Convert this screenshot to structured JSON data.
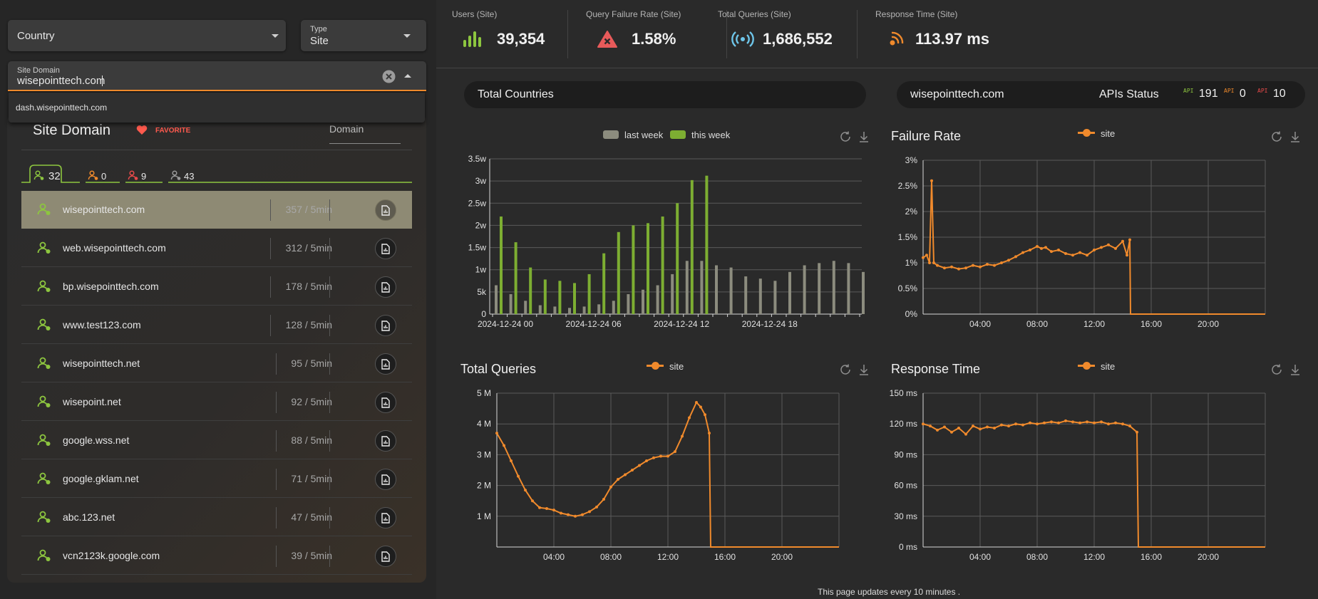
{
  "filters": {
    "country": {
      "label": "Country"
    },
    "type": {
      "caption": "Type",
      "value": "Site"
    },
    "site_domain": {
      "caption": "Site Domain",
      "value": "wisepointtech.com"
    },
    "suggestion": "dash.wisepointtech.com"
  },
  "panel": {
    "title": "Site Domain",
    "favorite_label": "FAVORITE",
    "domain_label": "Domain",
    "status_tabs": [
      {
        "count": "32",
        "color": "#8dc63f"
      },
      {
        "count": "0",
        "color": "#f08a2c"
      },
      {
        "count": "9",
        "color": "#e94a4a"
      },
      {
        "count": "43",
        "color": "#9a9a9a"
      }
    ],
    "rows": [
      {
        "name": "wisepointtech.com",
        "rate": "357 / 5min"
      },
      {
        "name": "web.wisepointtech.com",
        "rate": "312 / 5min"
      },
      {
        "name": "bp.wisepointtech.com",
        "rate": "178 / 5min"
      },
      {
        "name": "www.test123.com",
        "rate": "128 / 5min"
      },
      {
        "name": "wisepointtech.net",
        "rate": "95 / 5min"
      },
      {
        "name": "wisepoint.net",
        "rate": "92 / 5min"
      },
      {
        "name": "google.wss.net",
        "rate": "88 / 5min"
      },
      {
        "name": "google.gklam.net",
        "rate": "71 / 5min"
      },
      {
        "name": "abc.123.net",
        "rate": "47 / 5min"
      },
      {
        "name": "vcn2123k.google.com",
        "rate": "39 / 5min"
      }
    ]
  },
  "kpis": [
    {
      "label": "Users  (Site)",
      "value": "39,354",
      "icon": "bars-icon",
      "color": "#8dc63f"
    },
    {
      "label": "Query Failure Rate  (Site)",
      "value": "1.58%",
      "icon": "alert-triangle-icon",
      "color": "#e85a5a"
    },
    {
      "label": "Total Queries  (Site)",
      "value": "1,686,552",
      "icon": "broadcast-icon",
      "color": "#6ec6ea"
    },
    {
      "label": "Response Time  (Site)",
      "value": "113.97 ms",
      "icon": "signal-icon",
      "color": "#f08a2c"
    }
  ],
  "countries_pill": {
    "title": "Total Countries"
  },
  "domain_pill": {
    "domain": "wisepointtech.com",
    "status_label": "APIs Status",
    "api_label": "API",
    "api_counts": [
      {
        "value": "191",
        "color": "#8dc63f"
      },
      {
        "value": "0",
        "color": "#f08a2c"
      },
      {
        "value": "10",
        "color": "#e94a4a"
      }
    ]
  },
  "footer": "This page updates every 10 minutes .",
  "chart_data": [
    {
      "type": "bar",
      "title": "",
      "series": [
        {
          "name": "last week",
          "color": "#8c8c7e",
          "values": [
            0.65,
            0.45,
            0.3,
            0.2,
            0.17,
            0.14,
            0.17,
            0.22,
            0.3,
            0.45,
            0.55,
            0.65,
            0.9,
            1.2,
            1.2,
            1.1,
            1.05,
            0.85,
            0.8,
            0.75,
            0.95,
            1.1,
            1.15,
            1.2,
            1.15,
            0.95
          ]
        },
        {
          "name": "this week",
          "color": "#7dae32",
          "values": [
            2.2,
            1.62,
            1.05,
            0.78,
            0.75,
            0.7,
            0.9,
            1.37,
            1.85,
            2.0,
            2.05,
            2.2,
            2.5,
            3.02,
            3.12,
            0,
            0,
            0,
            0,
            0,
            0,
            0,
            0,
            0,
            0,
            0
          ]
        }
      ],
      "x_tick_labels": [
        "2024-12-24 00",
        "2024-12-24 06",
        "2024-12-24 12",
        "2024-12-24 18"
      ],
      "y_tick_labels": [
        "0",
        "5k",
        "1w",
        "1.5w",
        "2w",
        "2.5w",
        "3w",
        "3.5w"
      ],
      "ylim": [
        0,
        3.5
      ],
      "y_unit": "w",
      "legend": "top-center"
    },
    {
      "type": "line",
      "title": "Failure Rate",
      "series": [
        {
          "name": "site",
          "color": "#f08a2c"
        }
      ],
      "y_tick_labels": [
        "0%",
        "0.5%",
        "1%",
        "1.5%",
        "2%",
        "2.5%",
        "3%"
      ],
      "x_tick_labels": [
        "04:00",
        "08:00",
        "12:00",
        "16:00",
        "20:00"
      ],
      "ylim": [
        0,
        3
      ],
      "x_range_hours": [
        0,
        24
      ],
      "points": [
        [
          0,
          1.1
        ],
        [
          0.25,
          1.15
        ],
        [
          0.45,
          1.0
        ],
        [
          0.6,
          2.6
        ],
        [
          0.75,
          1.0
        ],
        [
          1,
          0.95
        ],
        [
          1.5,
          0.9
        ],
        [
          2,
          0.92
        ],
        [
          2.5,
          0.88
        ],
        [
          3,
          0.9
        ],
        [
          3.5,
          0.95
        ],
        [
          4,
          0.92
        ],
        [
          4.5,
          0.97
        ],
        [
          5,
          0.95
        ],
        [
          5.5,
          1.0
        ],
        [
          6,
          1.05
        ],
        [
          6.5,
          1.12
        ],
        [
          7,
          1.2
        ],
        [
          7.5,
          1.25
        ],
        [
          8,
          1.32
        ],
        [
          8.3,
          1.28
        ],
        [
          8.6,
          1.3
        ],
        [
          9,
          1.22
        ],
        [
          9.5,
          1.25
        ],
        [
          10,
          1.18
        ],
        [
          10.5,
          1.15
        ],
        [
          11,
          1.2
        ],
        [
          11.5,
          1.15
        ],
        [
          12,
          1.25
        ],
        [
          12.5,
          1.3
        ],
        [
          13,
          1.35
        ],
        [
          13.5,
          1.28
        ],
        [
          14,
          1.42
        ],
        [
          14.3,
          1.15
        ],
        [
          14.5,
          1.45
        ],
        [
          14.55,
          0
        ],
        [
          24,
          0
        ]
      ]
    },
    {
      "type": "line",
      "title": "Total Queries",
      "series": [
        {
          "name": "site",
          "color": "#f08a2c"
        }
      ],
      "y_tick_labels": [
        "1 M",
        "2 M",
        "3 M",
        "4 M",
        "5 M"
      ],
      "x_tick_labels": [
        "04:00",
        "08:00",
        "12:00",
        "16:00",
        "20:00"
      ],
      "ylim": [
        0,
        5
      ],
      "y_unit": "M",
      "x_range_hours": [
        0,
        24
      ],
      "points": [
        [
          0,
          3.7
        ],
        [
          0.5,
          3.3
        ],
        [
          1,
          2.8
        ],
        [
          1.5,
          2.3
        ],
        [
          2,
          1.85
        ],
        [
          2.5,
          1.5
        ],
        [
          3,
          1.28
        ],
        [
          3.5,
          1.25
        ],
        [
          4,
          1.2
        ],
        [
          4.5,
          1.1
        ],
        [
          5,
          1.05
        ],
        [
          5.5,
          1.0
        ],
        [
          6,
          1.05
        ],
        [
          6.5,
          1.15
        ],
        [
          7,
          1.3
        ],
        [
          7.5,
          1.55
        ],
        [
          8,
          1.95
        ],
        [
          8.5,
          2.2
        ],
        [
          9,
          2.35
        ],
        [
          9.5,
          2.5
        ],
        [
          10,
          2.65
        ],
        [
          10.5,
          2.8
        ],
        [
          11,
          2.9
        ],
        [
          11.5,
          2.95
        ],
        [
          12,
          2.95
        ],
        [
          12.5,
          3.1
        ],
        [
          13,
          3.6
        ],
        [
          13.5,
          4.2
        ],
        [
          14,
          4.7
        ],
        [
          14.3,
          4.55
        ],
        [
          14.6,
          4.3
        ],
        [
          14.9,
          3.7
        ],
        [
          15,
          0
        ],
        [
          24,
          0
        ]
      ]
    },
    {
      "type": "line",
      "title": "Response Time",
      "series": [
        {
          "name": "site",
          "color": "#f08a2c"
        }
      ],
      "y_tick_labels": [
        "0 ms",
        "30 ms",
        "60 ms",
        "90 ms",
        "120 ms",
        "150 ms"
      ],
      "x_tick_labels": [
        "04:00",
        "08:00",
        "12:00",
        "16:00",
        "20:00"
      ],
      "ylim": [
        0,
        150
      ],
      "y_unit": "ms",
      "x_range_hours": [
        0,
        24
      ],
      "points": [
        [
          0,
          120
        ],
        [
          0.5,
          118
        ],
        [
          1,
          114
        ],
        [
          1.5,
          117
        ],
        [
          2,
          112
        ],
        [
          2.5,
          116
        ],
        [
          3,
          110
        ],
        [
          3.5,
          118
        ],
        [
          4,
          115
        ],
        [
          4.5,
          117
        ],
        [
          5,
          116
        ],
        [
          5.5,
          119
        ],
        [
          6,
          118
        ],
        [
          6.5,
          120
        ],
        [
          7,
          119
        ],
        [
          7.5,
          121
        ],
        [
          8,
          120
        ],
        [
          8.5,
          121
        ],
        [
          9,
          122
        ],
        [
          9.5,
          121
        ],
        [
          10,
          123
        ],
        [
          10.5,
          122
        ],
        [
          11,
          121
        ],
        [
          11.5,
          122
        ],
        [
          12,
          121
        ],
        [
          12.5,
          122
        ],
        [
          13,
          120
        ],
        [
          13.5,
          121
        ],
        [
          14,
          120
        ],
        [
          14.5,
          118
        ],
        [
          15,
          112
        ],
        [
          15.1,
          0
        ],
        [
          24,
          0
        ]
      ]
    }
  ]
}
